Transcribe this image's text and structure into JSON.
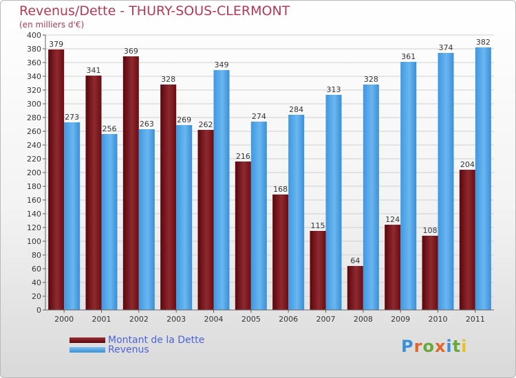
{
  "title": "Revenus/Dette - THURY-SOUS-CLERMONT",
  "subtitle": "(en milliers d'€)",
  "brand": "Proxiti",
  "colors": {
    "dette": "#6b0d12",
    "revenus": "#4aa3e8",
    "title": "#b23a55",
    "legend_text": "#4b63d8",
    "grid": "#cfcfcf"
  },
  "legend": [
    {
      "label": "Montant de la Dette",
      "color": "#6b0d12"
    },
    {
      "label": "Revenus",
      "color": "#4aa3e8"
    }
  ],
  "chart_data": {
    "type": "bar",
    "categories": [
      "2000",
      "2001",
      "2002",
      "2003",
      "2004",
      "2005",
      "2006",
      "2007",
      "2008",
      "2009",
      "2010",
      "2011"
    ],
    "series": [
      {
        "name": "Montant de la Dette",
        "values": [
          379,
          341,
          369,
          328,
          262,
          216,
          168,
          115,
          64,
          124,
          108,
          204
        ]
      },
      {
        "name": "Revenus",
        "values": [
          273,
          256,
          263,
          269,
          349,
          274,
          284,
          313,
          328,
          361,
          374,
          382
        ]
      }
    ],
    "ylim": [
      0,
      400
    ],
    "ytick_step": 20,
    "grid": true,
    "legend_position": "bottom-left"
  }
}
